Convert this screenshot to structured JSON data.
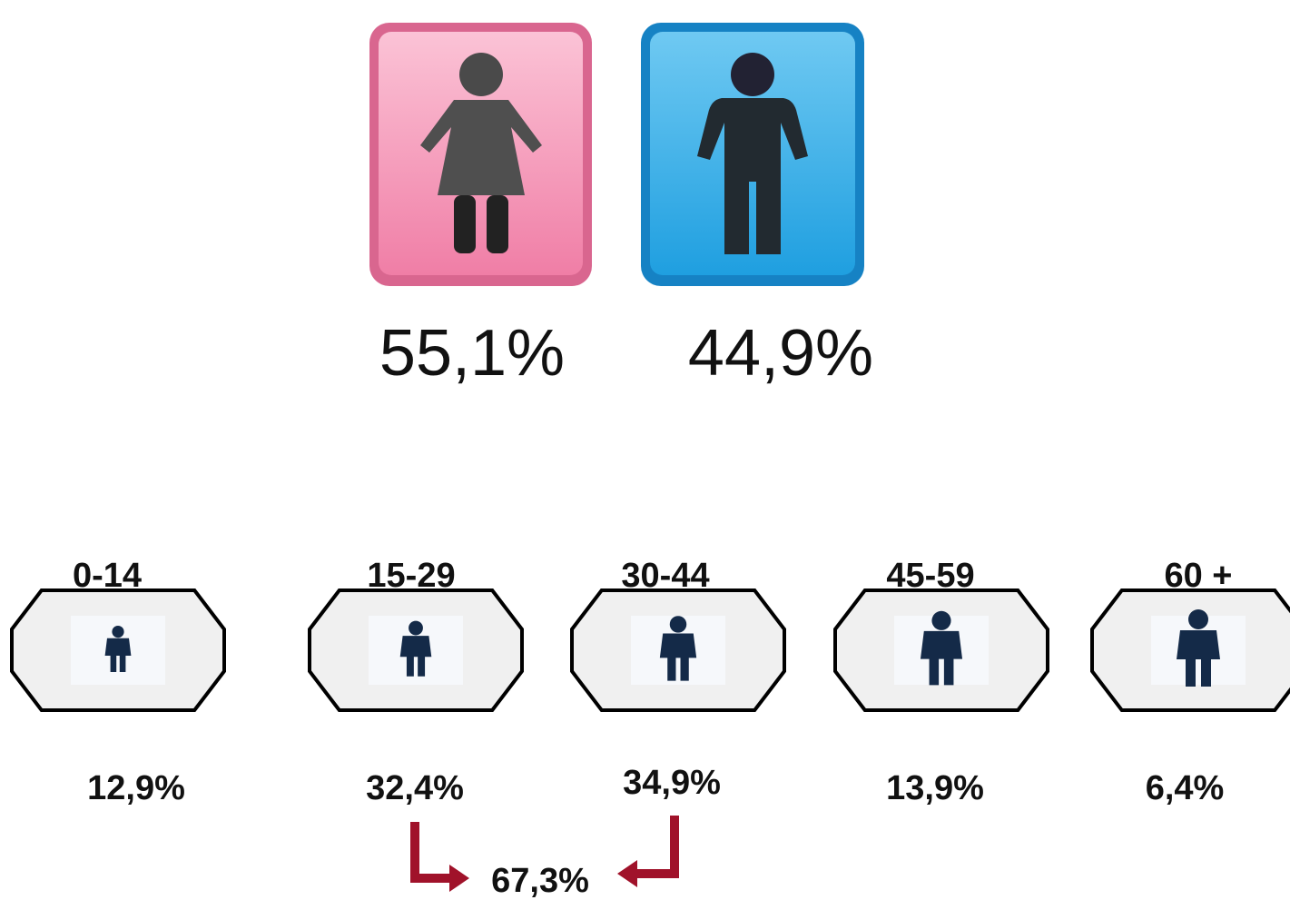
{
  "gender": [
    {
      "label": "55,1%"
    },
    {
      "label": "44,9%"
    }
  ],
  "age_groups": [
    {
      "range": "0-14",
      "share": "12,9%"
    },
    {
      "range": "15-29",
      "share": "32,4%"
    },
    {
      "range": "30-44",
      "share": "34,9%"
    },
    {
      "range": "45-59",
      "share": "13,9%"
    },
    {
      "range": "60 +",
      "share": "6,4%"
    }
  ],
  "combined_share": "67,3%"
}
